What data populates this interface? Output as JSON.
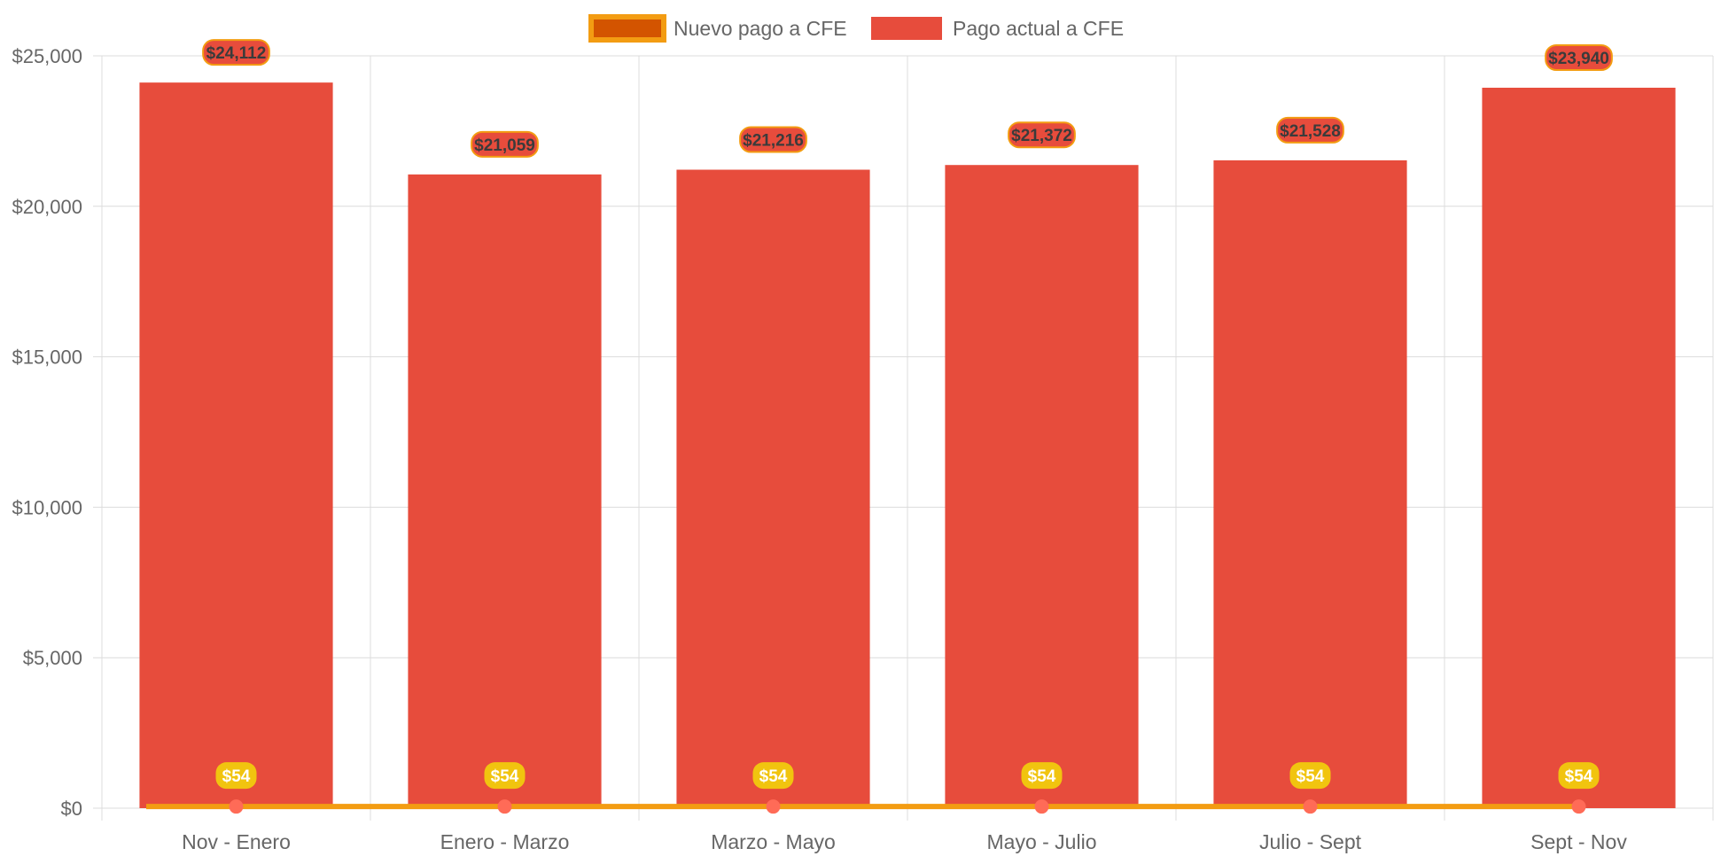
{
  "chart_data": {
    "type": "bar",
    "title": "",
    "xlabel": "",
    "ylabel": "",
    "categories": [
      "Nov - Enero",
      "Enero - Marzo",
      "Marzo - Mayo",
      "Mayo - Julio",
      "Julio - Sept",
      "Sept - Nov"
    ],
    "ylim": [
      0,
      25000
    ],
    "yticks": [
      0,
      5000,
      10000,
      15000,
      20000,
      25000
    ],
    "ytick_labels": [
      "$0",
      "$5,000",
      "$10,000",
      "$15,000",
      "$20,000",
      "$25,000"
    ],
    "grid": true,
    "legend_position": "top-center",
    "series": [
      {
        "name": "Nuevo pago a CFE",
        "type": "line",
        "values": [
          54,
          54,
          54,
          54,
          54,
          54
        ],
        "labels": [
          "$54",
          "$54",
          "$54",
          "$54",
          "$54",
          "$54"
        ],
        "line_color": "#f39c12",
        "point_color": "#ff6b57",
        "legend_fill": "#d35400",
        "legend_border": "#f39c12",
        "label_bg": "#f1c40f",
        "label_text_color": "#ffffff"
      },
      {
        "name": "Pago actual a CFE",
        "type": "bar",
        "values": [
          24112,
          21059,
          21216,
          21372,
          21528,
          23940
        ],
        "labels": [
          "$24,112",
          "$21,059",
          "$21,216",
          "$21,372",
          "$21,528",
          "$23,940"
        ],
        "bar_color": "#e74c3c",
        "label_border": "#f39c12",
        "label_text_color": "#3b3b3b"
      }
    ]
  }
}
